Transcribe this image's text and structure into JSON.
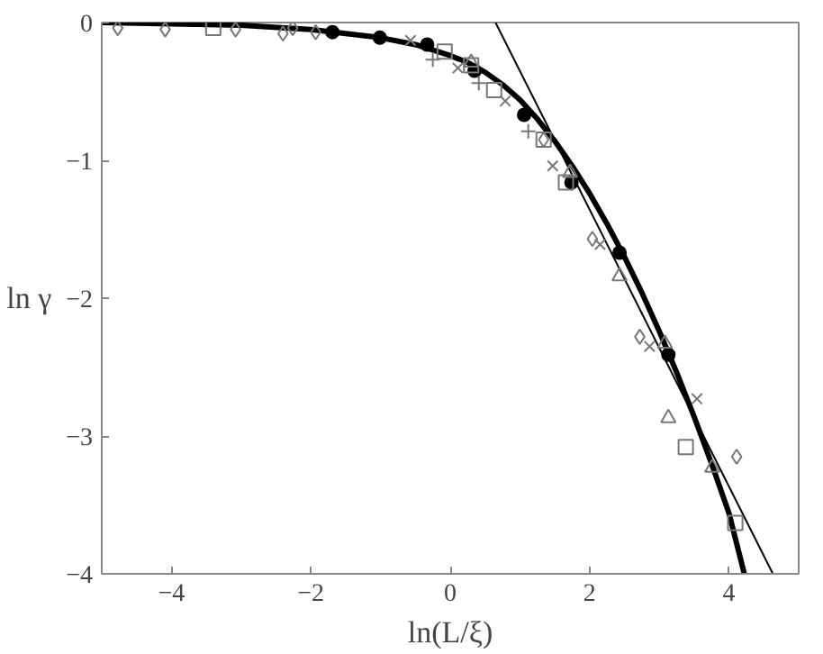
{
  "chart_data": {
    "type": "scatter",
    "xlabel": "ln(L/ξ)",
    "ylabel": "ln γ",
    "xlim": [
      -5,
      5
    ],
    "ylim": [
      -4,
      0
    ],
    "xticks": [
      {
        "value": -4,
        "label": "−4"
      },
      {
        "value": -2,
        "label": "−2"
      },
      0,
      2,
      4
    ],
    "yticks": [
      {
        "value": -4,
        "label": "−4"
      },
      {
        "value": -3,
        "label": "−3"
      },
      {
        "value": -2,
        "label": "−2"
      },
      {
        "value": -1,
        "label": "−1"
      },
      0
    ],
    "grid": false,
    "series": [
      {
        "type": "line",
        "color": "#000000",
        "x": [
          -5,
          -4,
          -3,
          -2,
          -1.5,
          -1,
          -0.5,
          0,
          0.25,
          0.5,
          0.75,
          1,
          1.25,
          1.5,
          1.75,
          2,
          2.25,
          2.5,
          2.75,
          3,
          3.25,
          3.5,
          3.75,
          4,
          4.22
        ],
        "values": [
          0,
          -0.01,
          -0.02,
          -0.05,
          -0.08,
          -0.11,
          -0.16,
          -0.24,
          -0.29,
          -0.36,
          -0.45,
          -0.56,
          -0.7,
          -0.86,
          -1.04,
          -1.24,
          -1.46,
          -1.7,
          -1.96,
          -2.24,
          -2.54,
          -2.86,
          -3.2,
          -3.56,
          -4
        ]
      },
      {
        "type": "line",
        "color": "#000000",
        "x": [
          0.65,
          4.63
        ],
        "values": [
          0,
          -4
        ]
      },
      {
        "color": "#000000",
        "marker": "circle",
        "x": [
          -1.69,
          -1.01,
          -0.33,
          0.35,
          1.06,
          1.74,
          2.43,
          3.13
        ],
        "values": [
          -0.07,
          -0.11,
          -0.16,
          -0.35,
          -0.67,
          -1.16,
          -1.67,
          -2.41
        ]
      },
      {
        "color": "#777777",
        "marker": "square",
        "x": [
          -3.4,
          -0.08,
          0.3,
          0.63,
          1.34,
          1.66,
          3.38,
          4.09
        ],
        "values": [
          -0.04,
          -0.21,
          -0.31,
          -0.49,
          -0.85,
          -1.16,
          -3.08,
          -3.63
        ]
      },
      {
        "color": "#777777",
        "marker": "diamond",
        "x": [
          -4.77,
          -4.09,
          -3.08,
          -2.4,
          -2.26,
          -1.93,
          1.34,
          2.04,
          2.72,
          4.11
        ],
        "values": [
          -0.04,
          -0.05,
          -0.05,
          -0.08,
          -0.04,
          -0.07,
          -0.85,
          -1.57,
          -2.28,
          -3.15
        ]
      },
      {
        "color": "#777777",
        "marker": "triangle",
        "x": [
          0.3,
          1.72,
          2.43,
          3.13,
          3.08,
          3.76
        ],
        "values": [
          -0.29,
          -1.09,
          -1.84,
          -2.87,
          -2.33,
          -3.23
        ]
      },
      {
        "color": "#777777",
        "marker": "x",
        "x": [
          -0.57,
          0.11,
          0.79,
          1.47,
          2.15,
          2.86,
          3.54
        ],
        "values": [
          -0.13,
          -0.33,
          -0.57,
          -1.04,
          -1.61,
          -2.35,
          -2.73
        ]
      },
      {
        "color": "#777777",
        "marker": "cross",
        "x": [
          -0.25,
          0.41,
          1.12
        ],
        "values": [
          -0.27,
          -0.44,
          -0.79
        ]
      }
    ]
  }
}
